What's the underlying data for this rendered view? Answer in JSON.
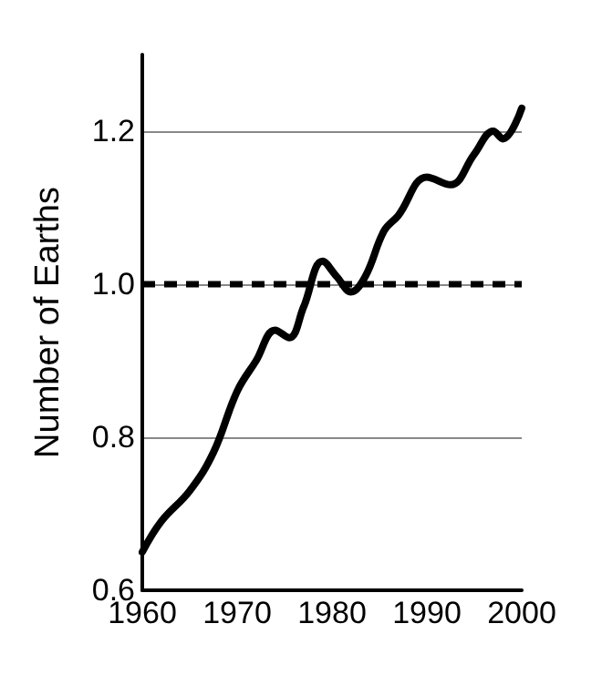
{
  "chart_data": {
    "type": "line",
    "ylabel": "Number of Earths",
    "x": [
      1960,
      1962,
      1965,
      1967.5,
      1970,
      1972,
      1974,
      1975.5,
      1977,
      1979,
      1980.5,
      1982,
      1983.5,
      1985.5,
      1987,
      1990,
      1992.5,
      1995,
      1997,
      1998,
      2000
    ],
    "series": [
      {
        "color": "#000000",
        "values": [
          0.65,
          0.69,
          0.73,
          0.78,
          0.86,
          0.9,
          0.94,
          0.93,
          0.97,
          1.03,
          1.01,
          0.99,
          1.01,
          1.07,
          1.09,
          1.14,
          1.13,
          1.17,
          1.2,
          1.19,
          1.23
        ]
      }
    ],
    "xlim": [
      1960,
      2000
    ],
    "xticks": [
      1960,
      1970,
      1980,
      1990,
      2000
    ],
    "ylim": [
      0.6,
      1.3
    ],
    "yticks": [
      {
        "value": 0.6,
        "label": "0.6"
      },
      {
        "value": 0.8,
        "label": "0.8"
      },
      {
        "value": 1.0,
        "label": "1.0"
      },
      {
        "value": 1.2,
        "label": "1.2"
      }
    ],
    "grid": "y",
    "marker": "none",
    "line_style": "solid",
    "ref_lines": [
      {
        "axis": "y",
        "value": 1.0,
        "color": "#000000",
        "line_style": "dashed"
      }
    ]
  }
}
